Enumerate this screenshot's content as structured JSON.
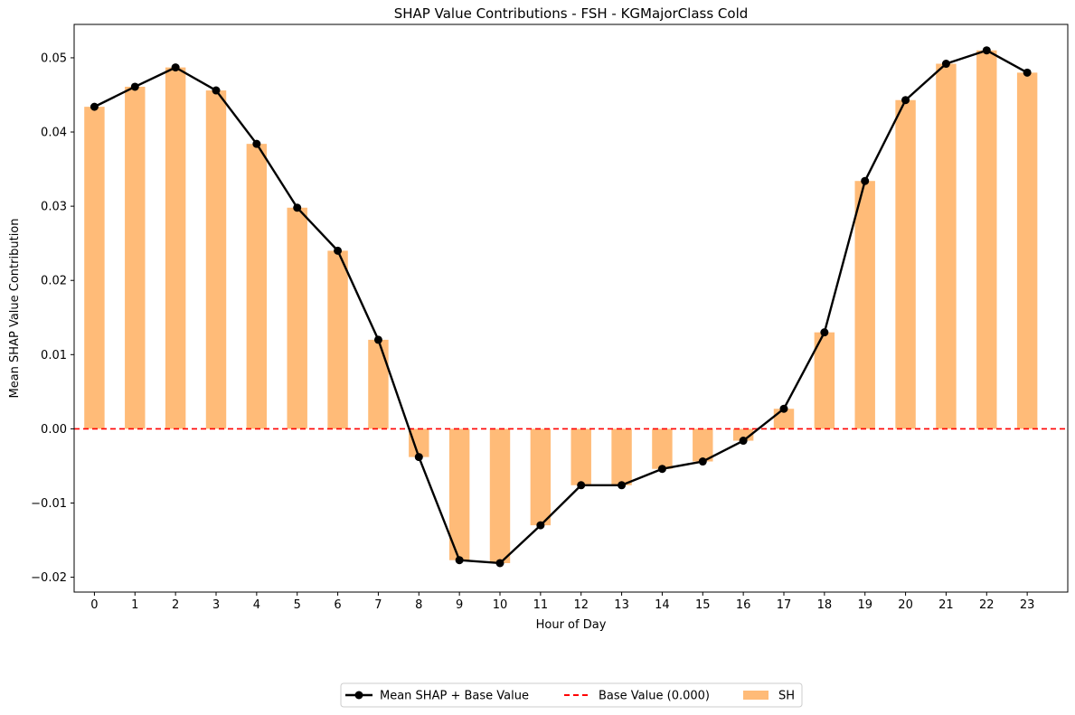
{
  "chart_data": {
    "type": "bar",
    "title": "SHAP Value Contributions - FSH - KGMajorClass Cold",
    "xlabel": "Hour of Day",
    "ylabel": "Mean SHAP Value Contribution",
    "categories": [
      "0",
      "1",
      "2",
      "3",
      "4",
      "5",
      "6",
      "7",
      "8",
      "9",
      "10",
      "11",
      "12",
      "13",
      "14",
      "15",
      "16",
      "17",
      "18",
      "19",
      "20",
      "21",
      "22",
      "23"
    ],
    "ylim": [
      -0.022,
      0.0545
    ],
    "yticks": [
      -0.02,
      -0.01,
      0.0,
      0.01,
      0.02,
      0.03,
      0.04,
      0.05
    ],
    "ytick_labels": [
      "−0.02",
      "−0.01",
      "0.00",
      "0.01",
      "0.02",
      "0.03",
      "0.04",
      "0.05"
    ],
    "base_value": 0.0,
    "series": [
      {
        "name": "SH",
        "kind": "bar",
        "color": "#ffbb78",
        "values": [
          0.0434,
          0.0461,
          0.0487,
          0.0456,
          0.0384,
          0.0298,
          0.024,
          0.012,
          -0.0038,
          -0.0177,
          -0.0181,
          -0.013,
          -0.0076,
          -0.0076,
          -0.0054,
          -0.0044,
          -0.0016,
          0.0027,
          0.013,
          0.0334,
          0.0443,
          0.0492,
          0.051,
          0.048
        ]
      },
      {
        "name": "Mean SHAP + Base Value",
        "kind": "line",
        "color": "#000000",
        "values": [
          0.0434,
          0.0461,
          0.0487,
          0.0456,
          0.0384,
          0.0298,
          0.024,
          0.012,
          -0.0038,
          -0.0177,
          -0.0181,
          -0.013,
          -0.0076,
          -0.0076,
          -0.0054,
          -0.0044,
          -0.0016,
          0.0027,
          0.013,
          0.0334,
          0.0443,
          0.0492,
          0.051,
          0.048
        ]
      }
    ],
    "base_line": {
      "name": "Base Value (0.000)",
      "color": "#ff0000",
      "value": 0.0
    },
    "legend": {
      "placement": "bottom-center",
      "entries": [
        "Mean SHAP + Base Value",
        "Base Value (0.000)",
        "SH"
      ]
    },
    "grid": false
  }
}
